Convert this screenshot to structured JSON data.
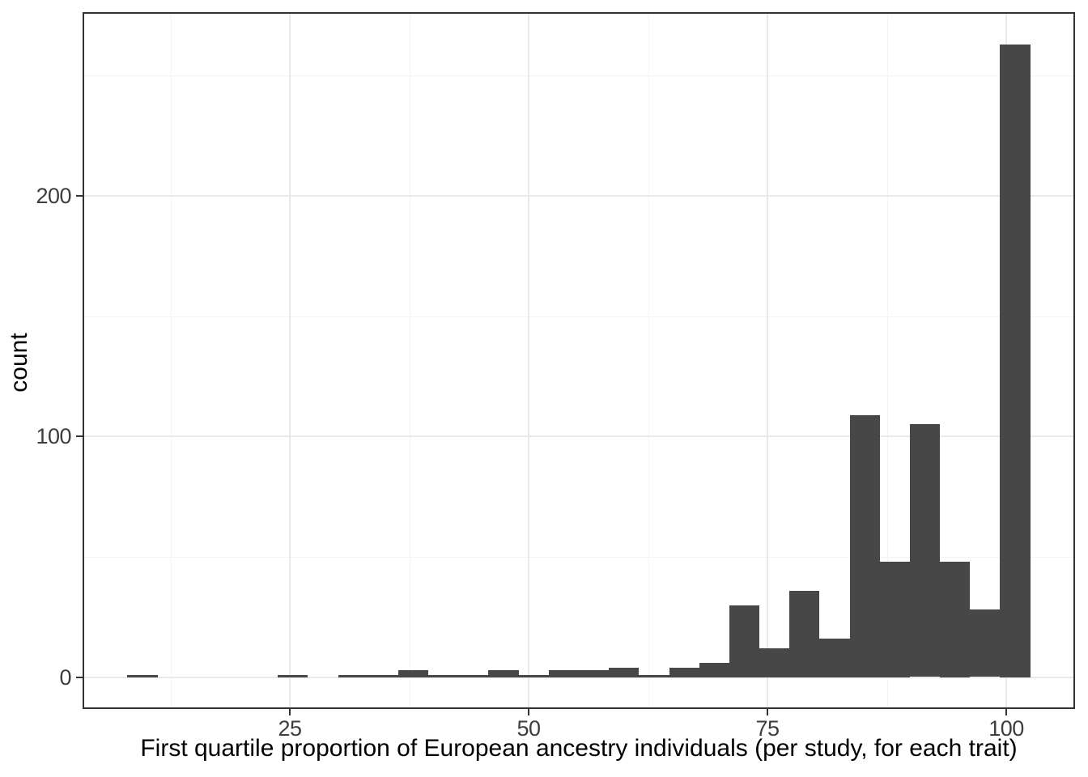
{
  "chart_data": {
    "type": "bar",
    "subtype": "histogram",
    "title": "",
    "xlabel": "First quartile proportion of European ancestry individuals (per study, for each trait)",
    "ylabel": "count",
    "x_ticks": [
      25,
      50,
      75,
      100
    ],
    "y_ticks": [
      0,
      100,
      200
    ],
    "x_minor_gridlines": [
      12.5,
      37.5,
      62.5,
      87.5
    ],
    "y_minor_gridlines": [
      50,
      150,
      250
    ],
    "xlim": [
      3.3,
      107.2
    ],
    "ylim": [
      -13.2,
      276.3
    ],
    "grid": "on",
    "legend": "none",
    "bins": {
      "start": 8.0,
      "width": 3.15
    },
    "counts": [
      1,
      0,
      0,
      0,
      0,
      1,
      0,
      1,
      1,
      3,
      1,
      1,
      3,
      1,
      3,
      3,
      4,
      1,
      4,
      6,
      30,
      12,
      36,
      16,
      109,
      48,
      105,
      48,
      28,
      263
    ],
    "colors": {
      "bar_fill": "#474747",
      "grid_major": "#e9e9e9",
      "grid_minor": "#f4f4f4",
      "panel_border": "#333333",
      "tick_mark": "#333333",
      "tick_label": "#3d3d3d",
      "axis_title": "#000000",
      "background": "#ffffff"
    }
  }
}
